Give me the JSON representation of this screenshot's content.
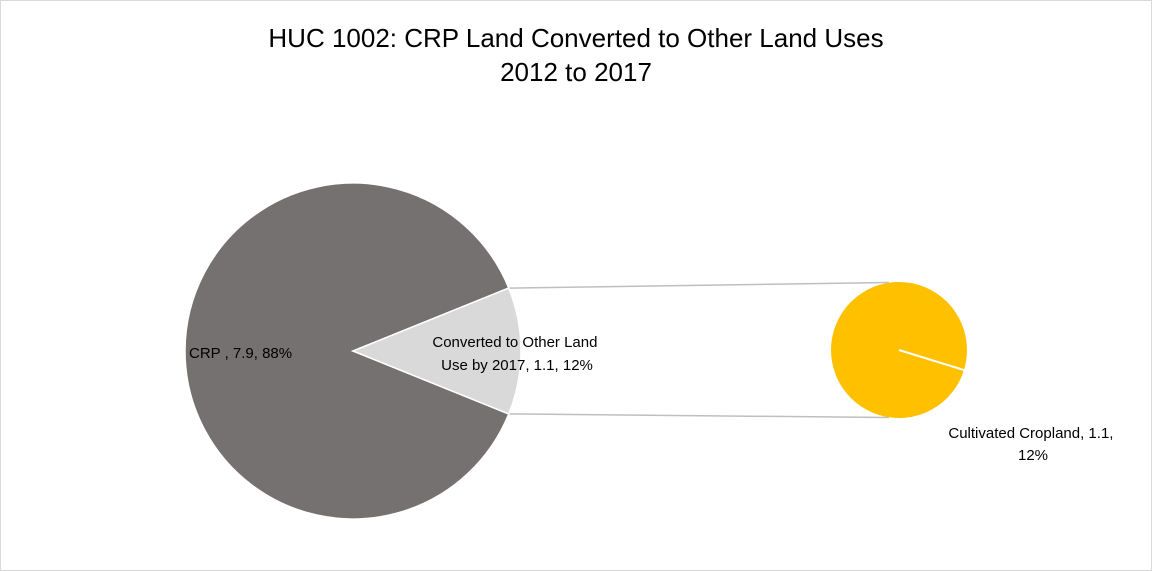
{
  "chart_data": {
    "type": "pie",
    "subtype": "pie-of-pie",
    "title": "HUC 1002: CRP Land Converted to Other Land Uses",
    "subtitle": "2012 to 2017",
    "main_pie": {
      "slices": [
        {
          "label": "CRP ",
          "value": 7.9,
          "percent": "88%",
          "color": "#767171"
        },
        {
          "label": "Converted to Other Land Use by 2017",
          "value": 1.1,
          "percent": "12%",
          "color": "#d9d9d9"
        }
      ]
    },
    "secondary_pie": {
      "slices": [
        {
          "label": "Cultivated Cropland",
          "value": 1.1,
          "percent": "12%",
          "color": "#ffc000"
        }
      ]
    },
    "data_labels": {
      "crp": "CRP , 7.9, 88%",
      "converted_line1": "Converted to Other Land",
      "converted_line2": "Use by 2017, 1.1, 12%",
      "cultivated_line1": "Cultivated Cropland, 1.1,",
      "cultivated_line2": "12%"
    },
    "connector_color": "#bfbfbf",
    "legend": "none"
  }
}
